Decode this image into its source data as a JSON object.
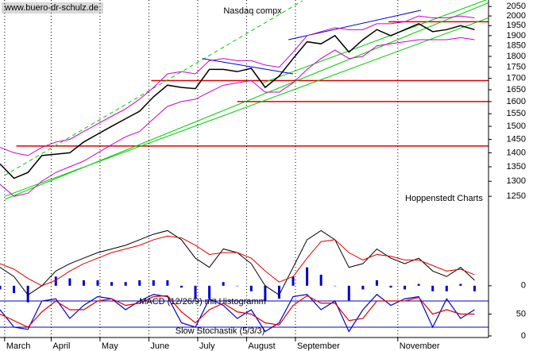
{
  "chart_data": {
    "type": "stock",
    "title": "Nasdaq compx",
    "watermark": "www.buero-dr-schulz.de",
    "source": "Hoppenstedt Charts",
    "x": [
      0,
      6,
      12,
      18,
      24,
      30,
      36,
      42,
      48,
      54,
      60,
      66,
      72,
      78,
      84,
      90,
      96,
      102,
      108,
      114,
      120,
      126,
      132,
      138,
      144,
      150,
      156,
      162,
      168,
      174,
      180,
      186,
      192,
      198,
      204
    ],
    "xlim": [
      0,
      210
    ],
    "xticks": [
      {
        "value": 2,
        "label": "March"
      },
      {
        "value": 22,
        "label": "April"
      },
      {
        "value": 43,
        "label": "May"
      },
      {
        "value": 64,
        "label": "June"
      },
      {
        "value": 85,
        "label": "July"
      },
      {
        "value": 106,
        "label": "August"
      },
      {
        "value": 127,
        "label": "September"
      },
      {
        "value": 171,
        "label": "November"
      }
    ],
    "grid": true,
    "price": {
      "log": true,
      "ylim": [
        1235,
        2085
      ],
      "yticks": [
        1250,
        1300,
        1350,
        1400,
        1450,
        1500,
        1550,
        1600,
        1650,
        1700,
        1750,
        1800,
        1850,
        1900,
        1950,
        2000,
        2050
      ],
      "series": [
        {
          "color": "#000000",
          "values": [
            1360,
            1310,
            1330,
            1390,
            1395,
            1400,
            1440,
            1470,
            1500,
            1530,
            1560,
            1620,
            1670,
            1660,
            1655,
            1740,
            1740,
            1730,
            1745,
            1660,
            1710,
            1790,
            1870,
            1860,
            1900,
            1820,
            1880,
            1930,
            1900,
            1930,
            1960,
            1920,
            1930,
            1950,
            1930
          ]
        },
        {
          "color": "#cc00cc",
          "values": [
            1420,
            1400,
            1390,
            1420,
            1440,
            1450,
            1480,
            1510,
            1540,
            1570,
            1610,
            1660,
            1720,
            1730,
            1720,
            1780,
            1790,
            1780,
            1780,
            1760,
            1750,
            1820,
            1900,
            1920,
            1940,
            1930,
            1930,
            1960,
            1960,
            1970,
            2000,
            1990,
            1990,
            2000,
            1990
          ]
        },
        {
          "color": "#cc00cc",
          "values": [
            1290,
            1250,
            1260,
            1300,
            1330,
            1350,
            1370,
            1400,
            1430,
            1460,
            1480,
            1530,
            1580,
            1600,
            1610,
            1640,
            1670,
            1680,
            1690,
            1640,
            1640,
            1680,
            1740,
            1790,
            1830,
            1790,
            1800,
            1850,
            1860,
            1870,
            1880,
            1880,
            1880,
            1890,
            1880
          ]
        }
      ],
      "levels": {
        "color": "#e00000",
        "lines": [
          {
            "x": 167,
            "y": 1970
          },
          {
            "x": 65,
            "y": 1690
          },
          {
            "x": 102,
            "y": 1600
          },
          {
            "x": 7,
            "y": 1425
          }
        ]
      },
      "trendlines": [
        {
          "color": "#00cc00",
          "dashed": false,
          "points": [
            [
              2,
              1240
            ],
            [
              210,
              2070
            ]
          ]
        },
        {
          "color": "#00cc00",
          "dashed": false,
          "points": [
            [
              2,
              1250
            ],
            [
              210,
              1990
            ]
          ]
        },
        {
          "color": "#00cc00",
          "dashed": false,
          "points": [
            [
              113,
              1680
            ],
            [
              210,
              2090
            ]
          ]
        },
        {
          "color": "#00cc00",
          "dashed": true,
          "points": [
            [
              2,
              1320
            ],
            [
              130,
              2080
            ]
          ]
        },
        {
          "color": "#0000cc",
          "dashed": false,
          "points": [
            [
              87,
              1790
            ],
            [
              126,
              1720
            ]
          ]
        },
        {
          "color": "#0000cc",
          "dashed": false,
          "points": [
            [
              124,
              1880
            ],
            [
              181,
              2030
            ]
          ]
        }
      ]
    },
    "macd": {
      "label": "MACD (12/26/9) mit Histogramm",
      "ylim": [
        -10,
        50
      ],
      "yticks": [
        0
      ],
      "series": [
        {
          "color": "#000000",
          "values": [
            10,
            5,
            -5,
            0,
            8,
            12,
            15,
            18,
            20,
            22,
            25,
            28,
            30,
            25,
            15,
            10,
            20,
            18,
            12,
            0,
            -5,
            10,
            25,
            30,
            25,
            10,
            12,
            20,
            15,
            12,
            15,
            8,
            5,
            10,
            3
          ]
        },
        {
          "color": "#e00000",
          "values": [
            12,
            9,
            4,
            0,
            3,
            8,
            12,
            15,
            18,
            20,
            22,
            25,
            27,
            26,
            22,
            17,
            18,
            18,
            15,
            8,
            2,
            5,
            15,
            24,
            25,
            18,
            14,
            17,
            16,
            14,
            14,
            11,
            8,
            9,
            6
          ]
        }
      ],
      "histogram": {
        "color": "#0000cc",
        "values": [
          -2,
          -4,
          -9,
          0,
          5,
          4,
          3,
          3,
          2,
          2,
          3,
          3,
          3,
          -1,
          -7,
          -7,
          2,
          0,
          -3,
          -8,
          -7,
          5,
          10,
          6,
          0,
          -8,
          -2,
          3,
          -1,
          -2,
          1,
          -3,
          -3,
          1,
          -3
        ]
      }
    },
    "stochastic": {
      "label": "Slow Stochastik (5/3/3)",
      "ylim": [
        0,
        100
      ],
      "yticks": [
        0,
        50
      ],
      "levels": {
        "color": "#0000cc",
        "values": [
          20,
          80
        ]
      },
      "series": [
        {
          "color": "#0000cc",
          "values": [
            60,
            20,
            15,
            80,
            85,
            40,
            70,
            90,
            85,
            60,
            80,
            95,
            90,
            30,
            20,
            85,
            70,
            40,
            60,
            10,
            30,
            90,
            95,
            60,
            80,
            10,
            60,
            95,
            70,
            85,
            90,
            20,
            85,
            40,
            60
          ]
        },
        {
          "color": "#e00000",
          "values": [
            50,
            35,
            20,
            55,
            80,
            60,
            60,
            80,
            85,
            70,
            75,
            90,
            92,
            55,
            30,
            60,
            75,
            55,
            50,
            30,
            25,
            70,
            92,
            75,
            75,
            35,
            40,
            80,
            80,
            80,
            88,
            50,
            60,
            50,
            50
          ]
        }
      ]
    }
  }
}
